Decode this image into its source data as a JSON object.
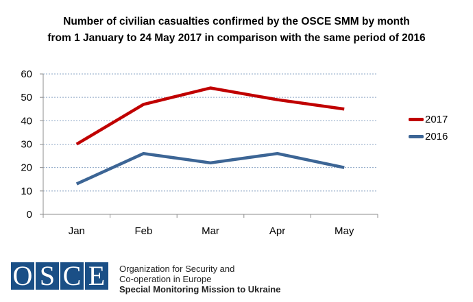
{
  "title": {
    "line1": "Number of civilian casualties confirmed by the OSCE SMM by month",
    "line2": "from 1 January to 24 May 2017 in comparison with the same period of 2016"
  },
  "chart_data": {
    "type": "line",
    "title": "Number of civilian casualties confirmed by the OSCE SMM by month from 1 January to 24 May 2017 in comparison with the same period of 2016",
    "categories": [
      "Jan",
      "Feb",
      "Mar",
      "Apr",
      "May"
    ],
    "series": [
      {
        "name": "2017",
        "color": "#c00000",
        "values": [
          30,
          47,
          54,
          49,
          45
        ]
      },
      {
        "name": "2016",
        "color": "#3c6595",
        "values": [
          13,
          26,
          22,
          26,
          20
        ]
      }
    ],
    "ylim": [
      0,
      60
    ],
    "yticks": [
      0,
      10,
      20,
      30,
      40,
      50,
      60
    ],
    "xlabel": "",
    "ylabel": "",
    "grid": true,
    "legend": "right"
  },
  "footer": {
    "logo_letters": [
      "O",
      "S",
      "C",
      "E"
    ],
    "org_line1": "Organization for Security and",
    "org_line2": "Co-operation in Europe",
    "org_line3": "Special Monitoring Mission to Ukraine"
  }
}
